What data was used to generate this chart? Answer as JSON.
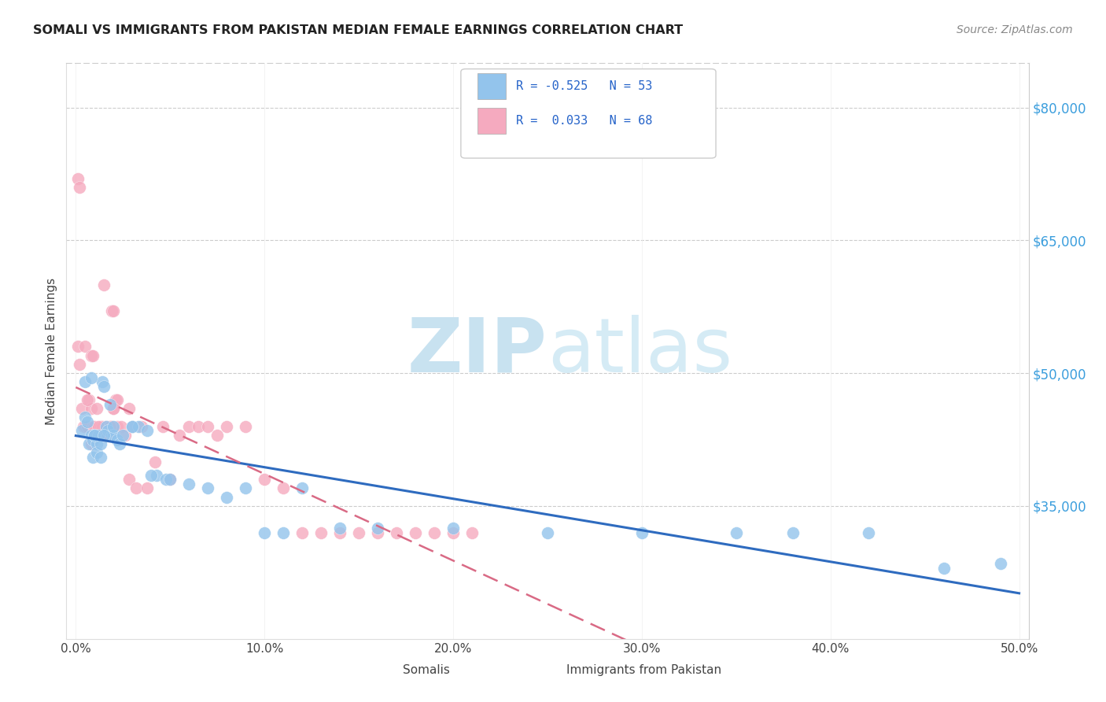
{
  "title": "SOMALI VS IMMIGRANTS FROM PAKISTAN MEDIAN FEMALE EARNINGS CORRELATION CHART",
  "source": "Source: ZipAtlas.com",
  "ylabel": "Median Female Earnings",
  "xtick_labels": [
    "0.0%",
    "10.0%",
    "20.0%",
    "30.0%",
    "40.0%",
    "50.0%"
  ],
  "xtick_vals": [
    0.0,
    0.1,
    0.2,
    0.3,
    0.4,
    0.5
  ],
  "ytick_labels": [
    "$35,000",
    "$50,000",
    "$65,000",
    "$80,000"
  ],
  "ytick_vals": [
    35000,
    50000,
    65000,
    80000
  ],
  "ylim": [
    20000,
    85000
  ],
  "xlim": [
    -0.005,
    0.505
  ],
  "R_somali": -0.525,
  "N_somali": 53,
  "R_pakistan": 0.033,
  "N_pakistan": 68,
  "color_somali": "#93C4EC",
  "color_pakistan": "#F5AABF",
  "color_trend_somali": "#2E6BBF",
  "color_trend_pakistan": "#D96A85",
  "legend_color_r": "#2563C9",
  "somali_x": [
    0.003,
    0.005,
    0.006,
    0.007,
    0.008,
    0.009,
    0.009,
    0.01,
    0.011,
    0.011,
    0.012,
    0.013,
    0.013,
    0.014,
    0.015,
    0.016,
    0.017,
    0.018,
    0.019,
    0.02,
    0.022,
    0.023,
    0.025,
    0.03,
    0.033,
    0.038,
    0.043,
    0.048,
    0.06,
    0.07,
    0.08,
    0.09,
    0.1,
    0.11,
    0.12,
    0.14,
    0.16,
    0.2,
    0.25,
    0.3,
    0.35,
    0.38,
    0.42,
    0.46,
    0.49,
    0.005,
    0.008,
    0.01,
    0.015,
    0.02,
    0.03,
    0.04,
    0.05
  ],
  "somali_y": [
    43500,
    45000,
    44500,
    42000,
    43000,
    42500,
    40500,
    43000,
    42000,
    41000,
    43000,
    42000,
    40500,
    49000,
    48500,
    44000,
    43500,
    46500,
    43000,
    43000,
    42500,
    42000,
    43000,
    44000,
    44000,
    43500,
    38500,
    38000,
    37500,
    37000,
    36000,
    37000,
    32000,
    32000,
    37000,
    32500,
    32500,
    32500,
    32000,
    32000,
    32000,
    32000,
    32000,
    28000,
    28500,
    49000,
    49500,
    43000,
    43000,
    44000,
    44000,
    38500,
    38000
  ],
  "pakistan_x": [
    0.001,
    0.002,
    0.003,
    0.004,
    0.005,
    0.005,
    0.006,
    0.007,
    0.008,
    0.008,
    0.009,
    0.01,
    0.01,
    0.011,
    0.012,
    0.013,
    0.014,
    0.015,
    0.016,
    0.017,
    0.018,
    0.019,
    0.02,
    0.021,
    0.022,
    0.024,
    0.026,
    0.028,
    0.03,
    0.032,
    0.035,
    0.038,
    0.042,
    0.046,
    0.05,
    0.055,
    0.06,
    0.065,
    0.07,
    0.075,
    0.08,
    0.09,
    0.1,
    0.11,
    0.12,
    0.13,
    0.14,
    0.15,
    0.16,
    0.17,
    0.18,
    0.19,
    0.2,
    0.21,
    0.001,
    0.002,
    0.015,
    0.019,
    0.02,
    0.022,
    0.028,
    0.02,
    0.009,
    0.01,
    0.012,
    0.008,
    0.006,
    0.018
  ],
  "pakistan_y": [
    53000,
    51000,
    46000,
    44000,
    53000,
    44000,
    44000,
    47000,
    52000,
    46000,
    44000,
    44000,
    43000,
    46000,
    43000,
    44000,
    44000,
    43000,
    44000,
    43000,
    44000,
    44000,
    46000,
    47000,
    44000,
    44000,
    43000,
    38000,
    44000,
    37000,
    44000,
    37000,
    40000,
    44000,
    38000,
    43000,
    44000,
    44000,
    44000,
    43000,
    44000,
    44000,
    38000,
    37000,
    32000,
    32000,
    32000,
    32000,
    32000,
    32000,
    32000,
    32000,
    32000,
    32000,
    72000,
    71000,
    60000,
    57000,
    57000,
    47000,
    46000,
    46000,
    52000,
    43000,
    44000,
    42000,
    47000,
    44000
  ]
}
